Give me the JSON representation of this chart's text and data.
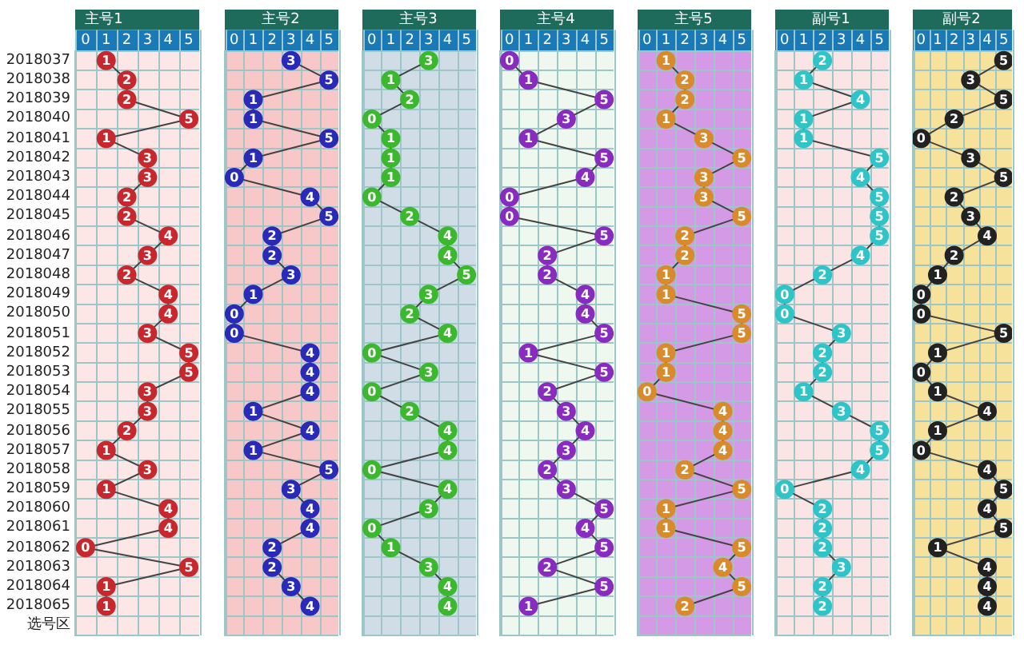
{
  "chart_data": [
    {
      "type": "line",
      "title": "主号1",
      "orientation": "horizontal",
      "categories": [
        "2018037",
        "2018038",
        "2018039",
        "2018040",
        "2018041",
        "2018042",
        "2018043",
        "2018044",
        "2018045",
        "2018046",
        "2018047",
        "2018048",
        "2018049",
        "2018050",
        "2018051",
        "2018052",
        "2018053",
        "2018054",
        "2018055",
        "2018056",
        "2018057",
        "2018058",
        "2018059",
        "2018060",
        "2018061",
        "2018062",
        "2018063",
        "2018064",
        "2018065",
        "选号区"
      ],
      "series": [
        {
          "color": "#c8282d",
          "values": [
            1,
            2,
            2,
            5,
            1,
            3,
            3,
            2,
            2,
            4,
            3,
            2,
            4,
            4,
            3,
            5,
            5,
            3,
            3,
            2,
            1,
            3,
            1,
            4,
            4,
            0,
            5,
            1,
            1,
            null
          ]
        }
      ],
      "xlim": [
        -0.5,
        5.5
      ],
      "xticks": [
        0,
        1,
        2,
        3,
        4,
        5
      ],
      "grid": true,
      "marker": "circle",
      "data_labels": true
    },
    {
      "type": "line",
      "title": "主号2",
      "orientation": "horizontal",
      "series": [
        {
          "color": "#2a2ab8",
          "values": [
            3,
            5,
            1,
            1,
            5,
            1,
            0,
            4,
            5,
            2,
            2,
            3,
            1,
            0,
            0,
            4,
            4,
            4,
            1,
            4,
            1,
            5,
            3,
            4,
            4,
            2,
            2,
            3,
            4,
            null
          ]
        }
      ],
      "xlim": [
        -0.5,
        5.5
      ],
      "xticks": [
        0,
        1,
        2,
        3,
        4,
        5
      ],
      "grid": true,
      "marker": "circle",
      "data_labels": true,
      "tick_labels": "x"
    },
    {
      "type": "line",
      "title": "主号3",
      "orientation": "horizontal",
      "series": [
        {
          "color": "#3cb82e",
          "values": [
            3,
            1,
            2,
            0,
            1,
            1,
            1,
            0,
            2,
            4,
            4,
            5,
            3,
            2,
            4,
            0,
            3,
            0,
            2,
            4,
            4,
            0,
            4,
            3,
            0,
            1,
            3,
            4,
            4,
            null
          ]
        }
      ],
      "xlim": [
        -0.5,
        5.5
      ],
      "xticks": [
        0,
        1,
        2,
        3,
        4,
        5
      ],
      "grid": true,
      "marker": "circle",
      "data_labels": true,
      "tick_labels": "x"
    },
    {
      "type": "line",
      "title": "主号4",
      "orientation": "horizontal",
      "series": [
        {
          "color": "#8a2bc0",
          "values": [
            0,
            1,
            5,
            3,
            1,
            5,
            4,
            0,
            0,
            5,
            2,
            2,
            4,
            4,
            5,
            1,
            5,
            2,
            3,
            4,
            3,
            2,
            3,
            5,
            4,
            5,
            2,
            5,
            1,
            null
          ]
        }
      ],
      "xlim": [
        -0.5,
        5.5
      ],
      "xticks": [
        0,
        1,
        2,
        3,
        4,
        5
      ],
      "grid": true,
      "marker": "circle",
      "data_labels": true,
      "tick_labels": "x"
    },
    {
      "type": "line",
      "title": "主号5",
      "orientation": "horizontal",
      "series": [
        {
          "color": "#d98a2a",
          "values": [
            1,
            2,
            2,
            1,
            3,
            5,
            3,
            3,
            5,
            2,
            2,
            1,
            1,
            5,
            5,
            1,
            1,
            0,
            4,
            4,
            4,
            2,
            5,
            1,
            1,
            5,
            4,
            5,
            2,
            null
          ]
        }
      ],
      "xlim": [
        -0.5,
        5.5
      ],
      "xticks": [
        0,
        1,
        2,
        3,
        4,
        5
      ],
      "grid": true,
      "marker": "circle",
      "data_labels": true,
      "tick_labels": "x"
    },
    {
      "type": "line",
      "title": "副号1",
      "orientation": "horizontal",
      "series": [
        {
          "color": "#2ec4c8",
          "values": [
            2,
            1,
            4,
            1,
            1,
            5,
            4,
            5,
            5,
            5,
            4,
            2,
            0,
            0,
            3,
            2,
            2,
            1,
            3,
            5,
            5,
            4,
            0,
            2,
            2,
            2,
            3,
            2,
            2,
            null
          ]
        }
      ],
      "xlim": [
        -0.5,
        5.5
      ],
      "xticks": [
        0,
        1,
        2,
        3,
        4,
        5
      ],
      "grid": true,
      "marker": "circle",
      "data_labels": true,
      "tick_labels": "x"
    },
    {
      "type": "line",
      "title": "副号2",
      "orientation": "horizontal",
      "series": [
        {
          "color": "#222222",
          "values": [
            5,
            3,
            5,
            2,
            0,
            3,
            5,
            2,
            3,
            4,
            2,
            1,
            0,
            0,
            5,
            1,
            0,
            1,
            4,
            1,
            0,
            4,
            5,
            4,
            5,
            1,
            4,
            4,
            4,
            null
          ]
        }
      ],
      "xlim": [
        -0.5,
        5.5
      ],
      "xticks": [
        0,
        1,
        2,
        3,
        4,
        5
      ],
      "grid": true,
      "marker": "circle",
      "data_labels": true,
      "tick_labels": "x"
    }
  ]
}
